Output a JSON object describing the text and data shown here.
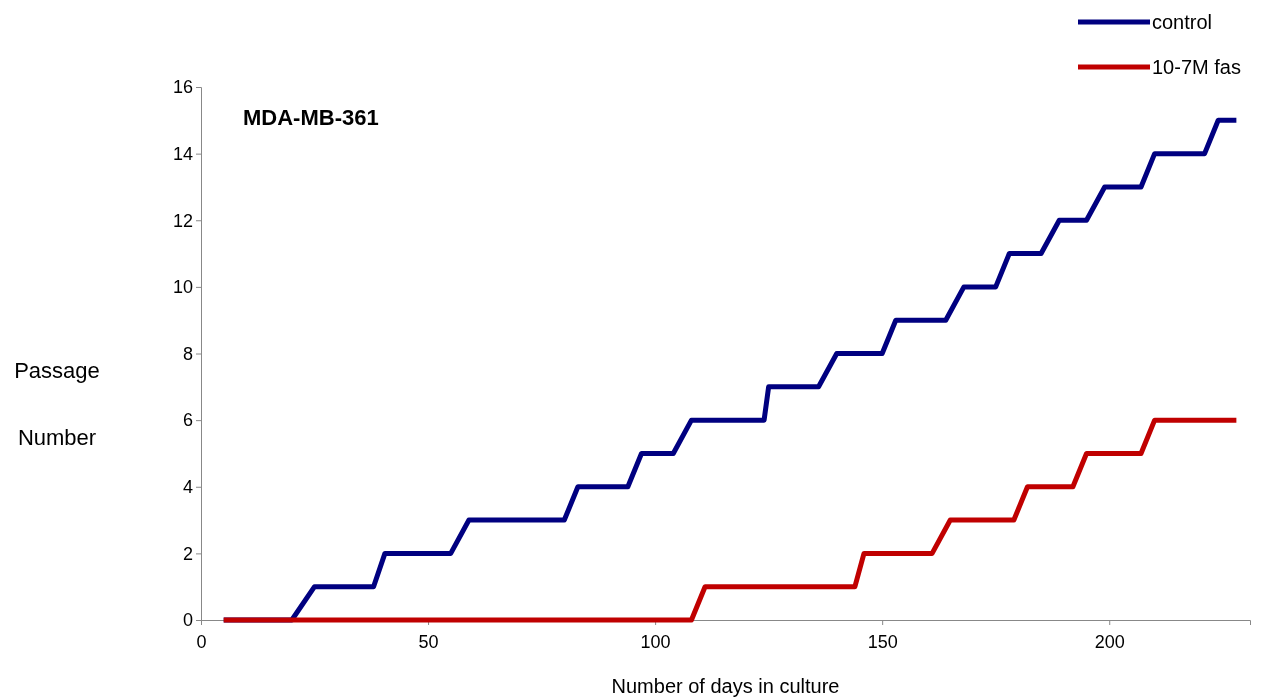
{
  "chart_data": {
    "type": "line",
    "xlabel": "Number of days in culture",
    "ylabel": "Passage Number",
    "annotations": [
      "MDA-MB-361"
    ],
    "xlim": [
      0,
      231
    ],
    "xticks": [
      0,
      50,
      100,
      150,
      200
    ],
    "ylim": [
      0,
      16
    ],
    "yticks": [
      0,
      2,
      4,
      6,
      8,
      10,
      12,
      14,
      16
    ],
    "grid": false,
    "legend": "top right",
    "marker": "none",
    "line_style": "solid",
    "series": [
      {
        "name": "control",
        "color": "#000080",
        "x": [
          5,
          20,
          25,
          38,
          40.5,
          55,
          59,
          80,
          83,
          94,
          97,
          104,
          108,
          124,
          125,
          136,
          140,
          150,
          153,
          164,
          168,
          175,
          178,
          185,
          189,
          195,
          199,
          207,
          210,
          221,
          224,
          228
        ],
        "values": [
          0,
          0,
          1,
          1,
          2,
          2,
          3,
          3,
          4,
          4,
          5,
          5,
          6,
          6,
          7,
          7,
          8,
          8,
          9,
          9,
          10,
          10,
          11,
          11,
          12,
          12,
          13,
          13,
          14,
          14,
          15,
          15
        ]
      },
      {
        "name": "10-7M fas",
        "color": "#c00000",
        "x": [
          5,
          108,
          111,
          144,
          146,
          161,
          165,
          179,
          182,
          192,
          195,
          207,
          210,
          228
        ],
        "values": [
          0,
          0,
          1,
          1,
          2,
          2,
          3,
          3,
          4,
          4,
          5,
          5,
          6,
          6
        ]
      }
    ]
  }
}
